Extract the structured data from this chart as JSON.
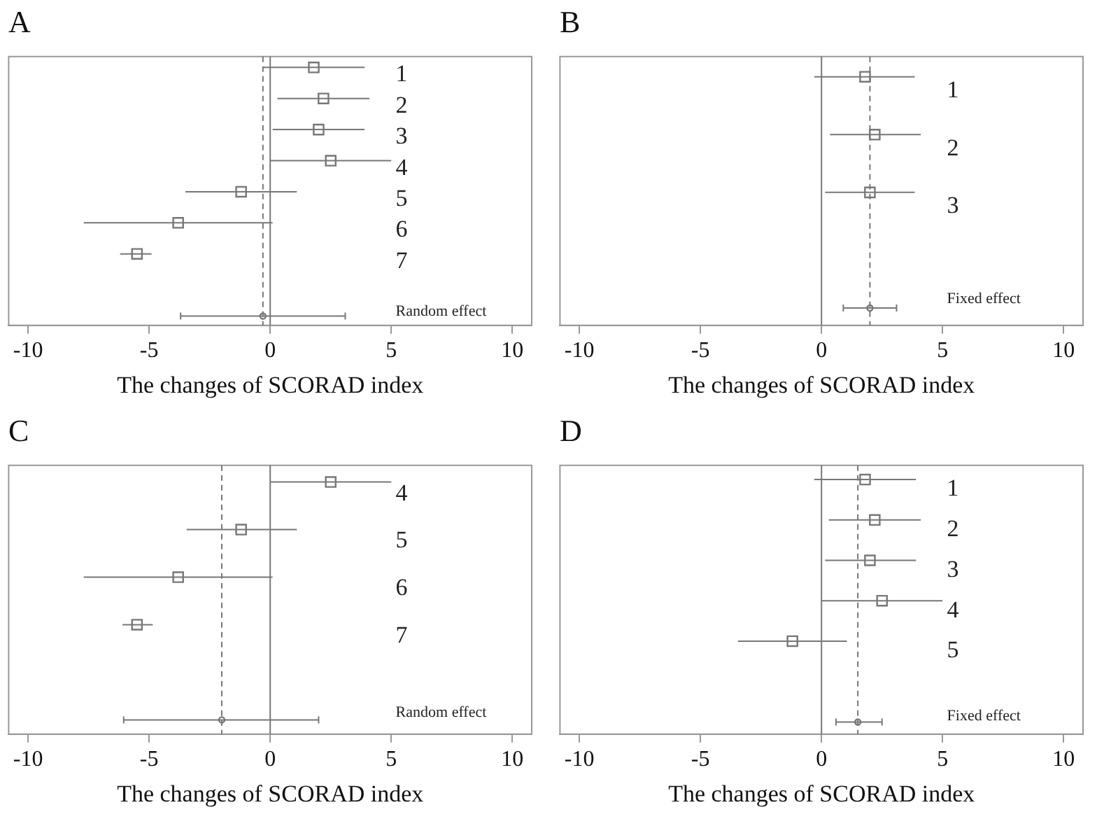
{
  "chart_data": [
    {
      "type": "scatter",
      "orientation": "horizontal",
      "title": "A",
      "xlabel": "The changes of SCORAD index",
      "categories": [
        "1",
        "2",
        "3",
        "4",
        "5",
        "6",
        "7",
        null,
        "Random effect"
      ],
      "xlim": [
        -10.8,
        10.8
      ],
      "xticks": [
        -10,
        -5,
        0,
        5,
        10
      ],
      "grid": false,
      "legend": false,
      "series": [
        {
          "color": "#777777",
          "marker": "square",
          "values": [
            1.8,
            2.2,
            2.0,
            2.5,
            -1.2,
            -3.8,
            -5.5,
            null,
            null
          ],
          "errors": [
            [
              -0.3,
              3.9
            ],
            [
              0.3,
              4.1
            ],
            [
              0.1,
              3.9
            ],
            [
              0,
              5.0
            ],
            [
              -3.5,
              1.1
            ],
            [
              -7.7,
              0.1
            ],
            [
              -6.2,
              -4.9
            ],
            null,
            null
          ]
        },
        {
          "color": "#777777",
          "marker": "circle",
          "values": [
            null,
            null,
            null,
            null,
            null,
            null,
            null,
            null,
            -0.3
          ],
          "errors": [
            null,
            null,
            null,
            null,
            null,
            null,
            null,
            null,
            [
              -3.7,
              3.1
            ]
          ]
        }
      ],
      "ref_lines": [
        {
          "axis": "x",
          "value": 0,
          "color": "#777777",
          "line_style": "solid"
        },
        {
          "axis": "x",
          "value": -0.3,
          "color": "#777777",
          "line_style": "dashed"
        }
      ]
    },
    {
      "type": "scatter",
      "orientation": "horizontal",
      "title": "B",
      "xlabel": "The changes of SCORAD index",
      "categories": [
        "1",
        "2",
        "3",
        null,
        "Fixed effect"
      ],
      "xlim": [
        -10.8,
        10.8
      ],
      "xticks": [
        -10,
        -5,
        0,
        5,
        10
      ],
      "grid": false,
      "legend": false,
      "series": [
        {
          "color": "#777777",
          "marker": "square",
          "values": [
            1.8,
            2.2,
            2.0,
            null,
            null
          ],
          "errors": [
            [
              -0.3,
              3.85
            ],
            [
              0.35,
              4.1
            ],
            [
              0.15,
              3.85
            ],
            null,
            null
          ]
        },
        {
          "color": "#777777",
          "marker": "circle",
          "values": [
            null,
            null,
            null,
            null,
            2.0
          ],
          "errors": [
            null,
            null,
            null,
            null,
            [
              0.9,
              3.1
            ]
          ]
        }
      ],
      "ref_lines": [
        {
          "axis": "x",
          "value": 0,
          "color": "#777777",
          "line_style": "solid"
        },
        {
          "axis": "x",
          "value": 2.0,
          "color": "#777777",
          "line_style": "dashed"
        }
      ]
    },
    {
      "type": "scatter",
      "orientation": "horizontal",
      "title": "C",
      "xlabel": "The changes of SCORAD index",
      "categories": [
        "4",
        "5",
        "6",
        "7",
        null,
        "Random effect"
      ],
      "xlim": [
        -10.8,
        10.8
      ],
      "xticks": [
        -10,
        -5,
        0,
        5,
        10
      ],
      "grid": false,
      "legend": false,
      "series": [
        {
          "color": "#777777",
          "marker": "square",
          "values": [
            2.5,
            -1.2,
            -3.8,
            -5.5,
            null,
            null
          ],
          "errors": [
            [
              0,
              5.0
            ],
            [
              -3.45,
              1.1
            ],
            [
              -7.7,
              0.1
            ],
            [
              -6.1,
              -4.85
            ],
            null,
            null
          ]
        },
        {
          "color": "#777777",
          "marker": "circle",
          "values": [
            null,
            null,
            null,
            null,
            null,
            -2.0
          ],
          "errors": [
            null,
            null,
            null,
            null,
            null,
            [
              -6.05,
              2.0
            ]
          ]
        }
      ],
      "ref_lines": [
        {
          "axis": "x",
          "value": 0,
          "color": "#777777",
          "line_style": "solid"
        },
        {
          "axis": "x",
          "value": -2.0,
          "color": "#777777",
          "line_style": "dashed"
        }
      ]
    },
    {
      "type": "scatter",
      "orientation": "horizontal",
      "title": "D",
      "xlabel": "The changes of SCORAD index",
      "categories": [
        "1",
        "2",
        "3",
        "4",
        "5",
        null,
        "Fixed effect"
      ],
      "xlim": [
        -10.8,
        10.8
      ],
      "xticks": [
        -10,
        -5,
        0,
        5,
        10
      ],
      "grid": false,
      "legend": false,
      "series": [
        {
          "color": "#777777",
          "marker": "square",
          "values": [
            1.8,
            2.2,
            2.0,
            2.5,
            -1.2,
            null,
            null
          ],
          "errors": [
            [
              -0.3,
              3.9
            ],
            [
              0.3,
              4.1
            ],
            [
              0.15,
              3.9
            ],
            [
              0,
              5.0
            ],
            [
              -3.45,
              1.05
            ],
            null,
            null
          ]
        },
        {
          "color": "#777777",
          "marker": "circle",
          "values": [
            null,
            null,
            null,
            null,
            null,
            null,
            1.5
          ],
          "errors": [
            null,
            null,
            null,
            null,
            null,
            null,
            [
              0.6,
              2.5
            ]
          ]
        }
      ],
      "ref_lines": [
        {
          "axis": "x",
          "value": 0,
          "color": "#777777",
          "line_style": "solid"
        },
        {
          "axis": "x",
          "value": 1.5,
          "color": "#777777",
          "line_style": "dashed"
        }
      ]
    }
  ]
}
